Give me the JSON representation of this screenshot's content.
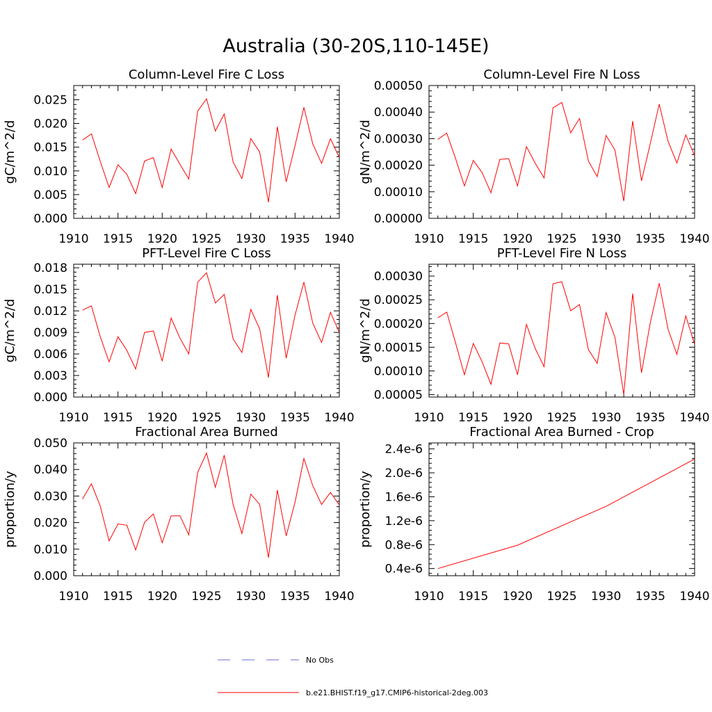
{
  "title": "Australia (30-20S,110-145E)",
  "legend": [
    {
      "label": "No Obs",
      "color": "#6a6ad0",
      "style": "dashed"
    },
    {
      "label": "b.e21.BHIST.f19_g17.CMIP6-historical-2deg.003",
      "color": "#ff0000",
      "style": "solid"
    }
  ],
  "chart_data": [
    {
      "type": "line",
      "title": "Column-Level Fire C Loss",
      "ylabel": "gC/m^2/d",
      "xlim": [
        1910,
        1940
      ],
      "ylim": [
        0,
        0.028
      ],
      "xticks": [
        1910,
        1915,
        1920,
        1925,
        1930,
        1935,
        1940
      ],
      "xtick_labels": [
        "1910",
        "1915",
        "1920",
        "1925",
        "1930",
        "1935",
        "1940"
      ],
      "yticks": [
        0,
        0.005,
        0.01,
        0.015,
        0.02,
        0.025
      ],
      "ytick_labels": [
        "0.000",
        "0.005",
        "0.010",
        "0.015",
        "0.020",
        "0.025"
      ],
      "series": [
        {
          "name": "b.e21.BHIST.f19_g17.CMIP6-historical-2deg.003",
          "x": [
            1911,
            1912,
            1913,
            1914,
            1915,
            1916,
            1917,
            1918,
            1919,
            1920,
            1921,
            1922,
            1923,
            1924,
            1925,
            1926,
            1927,
            1928,
            1929,
            1930,
            1931,
            1932,
            1933,
            1934,
            1935,
            1936,
            1937,
            1938,
            1939,
            1940
          ],
          "y": [
            0.0165,
            0.0178,
            0.012,
            0.0065,
            0.0113,
            0.0093,
            0.0052,
            0.0121,
            0.0128,
            0.0065,
            0.0146,
            0.0114,
            0.0083,
            0.0226,
            0.0252,
            0.0184,
            0.022,
            0.0119,
            0.0084,
            0.0168,
            0.014,
            0.0034,
            0.0193,
            0.0077,
            0.0153,
            0.0234,
            0.0157,
            0.0116,
            0.0168,
            0.0128
          ]
        }
      ]
    },
    {
      "type": "line",
      "title": "Column-Level Fire N Loss",
      "ylabel": "gN/m^2/d",
      "xlim": [
        1910,
        1940
      ],
      "ylim": [
        0,
        0.0005
      ],
      "xticks": [
        1910,
        1915,
        1920,
        1925,
        1930,
        1935,
        1940
      ],
      "xtick_labels": [
        "1910",
        "1915",
        "1920",
        "1925",
        "1930",
        "1935",
        "1940"
      ],
      "yticks": [
        0,
        0.0001,
        0.0002,
        0.0003,
        0.0004,
        0.0005
      ],
      "ytick_labels": [
        "0.00000",
        "0.00010",
        "0.00020",
        "0.00030",
        "0.00040",
        "0.00050"
      ],
      "series": [
        {
          "name": "b.e21.BHIST.f19_g17.CMIP6-historical-2deg.003",
          "x": [
            1911,
            1912,
            1913,
            1914,
            1915,
            1916,
            1917,
            1918,
            1919,
            1920,
            1921,
            1922,
            1923,
            1924,
            1925,
            1926,
            1927,
            1928,
            1929,
            1930,
            1931,
            1932,
            1933,
            1934,
            1935,
            1936,
            1937,
            1938,
            1939,
            1940
          ],
          "y": [
            0.000297,
            0.000321,
            0.000225,
            0.000122,
            0.000218,
            0.000172,
            9.6e-05,
            0.000222,
            0.000225,
            0.000122,
            0.00027,
            0.000207,
            0.000152,
            0.000416,
            0.000436,
            0.000322,
            0.000376,
            0.000216,
            0.000157,
            0.000312,
            0.000257,
            6.5e-05,
            0.000366,
            0.000141,
            0.000282,
            0.00043,
            0.00029,
            0.000208,
            0.000314,
            0.000235
          ]
        }
      ]
    },
    {
      "type": "line",
      "title": "PFT-Level Fire C Loss",
      "ylabel": "gC/m^2/d",
      "xlim": [
        1910,
        1940
      ],
      "ylim": [
        0,
        0.0185
      ],
      "xticks": [
        1910,
        1915,
        1920,
        1925,
        1930,
        1935,
        1940
      ],
      "xtick_labels": [
        "1910",
        "1915",
        "1920",
        "1925",
        "1930",
        "1935",
        "1940"
      ],
      "yticks": [
        0,
        0.003,
        0.006,
        0.009,
        0.012,
        0.015,
        0.018
      ],
      "ytick_labels": [
        "0.000",
        "0.003",
        "0.006",
        "0.009",
        "0.012",
        "0.015",
        "0.018"
      ],
      "series": [
        {
          "name": "b.e21.BHIST.f19_g17.CMIP6-historical-2deg.003",
          "x": [
            1911,
            1912,
            1913,
            1914,
            1915,
            1916,
            1917,
            1918,
            1919,
            1920,
            1921,
            1922,
            1923,
            1924,
            1925,
            1926,
            1927,
            1928,
            1929,
            1930,
            1931,
            1932,
            1933,
            1934,
            1935,
            1936,
            1937,
            1938,
            1939,
            1940
          ],
          "y": [
            0.0121,
            0.0127,
            0.0084,
            0.0049,
            0.0084,
            0.0065,
            0.0039,
            0.009,
            0.0092,
            0.005,
            0.011,
            0.0082,
            0.006,
            0.016,
            0.0173,
            0.0131,
            0.0143,
            0.0081,
            0.0062,
            0.0122,
            0.0095,
            0.0027,
            0.0142,
            0.0054,
            0.0114,
            0.016,
            0.0103,
            0.0076,
            0.0118,
            0.009
          ]
        }
      ]
    },
    {
      "type": "line",
      "title": "PFT-Level Fire N Loss",
      "ylabel": "gN/m^2/d",
      "xlim": [
        1910,
        1940
      ],
      "ylim": [
        4.5e-05,
        0.000325
      ],
      "xticks": [
        1910,
        1915,
        1920,
        1925,
        1930,
        1935,
        1940
      ],
      "xtick_labels": [
        "1910",
        "1915",
        "1920",
        "1925",
        "1930",
        "1935",
        "1940"
      ],
      "yticks": [
        5e-05,
        0.0001,
        0.00015,
        0.0002,
        0.00025,
        0.0003
      ],
      "ytick_labels": [
        "0.00005",
        "0.00010",
        "0.00015",
        "0.00020",
        "0.00025",
        "0.00030"
      ],
      "series": [
        {
          "name": "b.e21.BHIST.f19_g17.CMIP6-historical-2deg.003",
          "x": [
            1911,
            1912,
            1913,
            1914,
            1915,
            1916,
            1917,
            1918,
            1919,
            1920,
            1921,
            1922,
            1923,
            1924,
            1925,
            1926,
            1927,
            1928,
            1929,
            1930,
            1931,
            1932,
            1933,
            1934,
            1935,
            1936,
            1937,
            1938,
            1939,
            1940
          ],
          "y": [
            0.000212,
            0.000224,
            0.000159,
            9.2e-05,
            0.000158,
            0.000119,
            7.2e-05,
            0.000159,
            0.000157,
            9.2e-05,
            0.000198,
            0.000147,
            0.000109,
            0.000284,
            0.000288,
            0.000227,
            0.00024,
            0.000145,
            0.000116,
            0.000223,
            0.000171,
            5e-05,
            0.000263,
            9.6e-05,
            0.000202,
            0.000285,
            0.000188,
            0.000135,
            0.000216,
            0.000156
          ]
        }
      ]
    },
    {
      "type": "line",
      "title": "Fractional Area Burned",
      "ylabel": "proportion/y",
      "xlim": [
        1910,
        1940
      ],
      "ylim": [
        0,
        0.05
      ],
      "xticks": [
        1910,
        1915,
        1920,
        1925,
        1930,
        1935,
        1940
      ],
      "xtick_labels": [
        "1910",
        "1915",
        "1920",
        "1925",
        "1930",
        "1935",
        "1940"
      ],
      "yticks": [
        0,
        0.01,
        0.02,
        0.03,
        0.04,
        0.05
      ],
      "ytick_labels": [
        "0.000",
        "0.010",
        "0.020",
        "0.030",
        "0.040",
        "0.050"
      ],
      "series": [
        {
          "name": "b.e21.BHIST.f19_g17.CMIP6-historical-2deg.003",
          "x": [
            1911,
            1912,
            1913,
            1914,
            1915,
            1916,
            1917,
            1918,
            1919,
            1920,
            1921,
            1922,
            1923,
            1924,
            1925,
            1926,
            1927,
            1928,
            1929,
            1930,
            1931,
            1932,
            1933,
            1934,
            1935,
            1936,
            1937,
            1938,
            1939,
            1940
          ],
          "y": [
            0.0289,
            0.0346,
            0.0262,
            0.0131,
            0.0195,
            0.019,
            0.0097,
            0.0201,
            0.0233,
            0.0124,
            0.0225,
            0.0226,
            0.0154,
            0.0389,
            0.0462,
            0.0333,
            0.0454,
            0.0269,
            0.0159,
            0.0307,
            0.0269,
            0.0068,
            0.0322,
            0.015,
            0.0277,
            0.0441,
            0.0339,
            0.0268,
            0.0314,
            0.0266
          ]
        }
      ]
    },
    {
      "type": "line",
      "title": "Fractional Area Burned - Crop",
      "ylabel": "proportion/y",
      "xlim": [
        1910,
        1940
      ],
      "ylim": [
        2.8e-07,
        2.5e-06
      ],
      "xticks": [
        1910,
        1915,
        1920,
        1925,
        1930,
        1935,
        1940
      ],
      "xtick_labels": [
        "1910",
        "1915",
        "1920",
        "1925",
        "1930",
        "1935",
        "1940"
      ],
      "yticks": [
        4e-07,
        8e-07,
        1.2e-06,
        1.6e-06,
        2e-06,
        2.4e-06
      ],
      "ytick_labels": [
        "0.4e-6",
        "0.8e-6",
        "1.2e-6",
        "1.6e-6",
        "2.0e-6",
        "2.4e-6"
      ],
      "series": [
        {
          "name": "b.e21.BHIST.f19_g17.CMIP6-historical-2deg.003",
          "x": [
            1911,
            1920,
            1930,
            1940
          ],
          "y": [
            4e-07,
            7.9e-07,
            1.44e-06,
            2.23e-06
          ]
        }
      ]
    }
  ]
}
